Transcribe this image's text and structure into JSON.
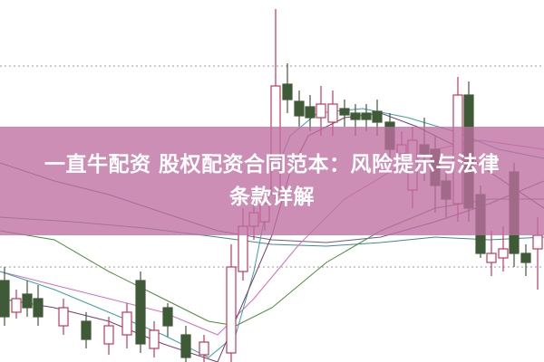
{
  "article": {
    "title_line1": "一直牛配资 股权配资合同范本：风险提示与法律",
    "title_line2": "条款详解"
  },
  "colors": {
    "up_candle": "#c0395a",
    "down_candle": "#3f5a36",
    "banner": "#c98fb5"
  }
}
